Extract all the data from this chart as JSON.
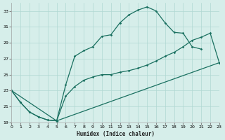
{
  "bg_color": "#d6eeea",
  "grid_color": "#b0d8d2",
  "line_color": "#1a7060",
  "xlabel": "Humidex (Indice chaleur)",
  "xlim": [
    0,
    23
  ],
  "ylim": [
    19,
    34
  ],
  "yticks": [
    19,
    21,
    23,
    25,
    27,
    29,
    31,
    33
  ],
  "xticks": [
    0,
    1,
    2,
    3,
    4,
    5,
    6,
    7,
    8,
    9,
    10,
    11,
    12,
    13,
    14,
    15,
    16,
    17,
    18,
    19,
    20,
    21,
    22,
    23
  ],
  "line1_x": [
    0,
    1,
    2,
    3,
    4,
    5,
    6,
    7,
    8,
    9,
    10,
    11,
    12,
    13,
    14,
    15,
    16,
    17,
    18,
    19,
    20,
    21
  ],
  "line1_y": [
    23.0,
    21.5,
    20.3,
    19.7,
    19.3,
    19.2,
    23.7,
    27.3,
    28.0,
    28.5,
    29.8,
    30.0,
    31.5,
    32.5,
    33.1,
    33.5,
    33.0,
    31.5,
    30.3,
    30.2,
    28.5,
    28.2
  ],
  "line2_x": [
    0,
    1,
    2,
    3,
    4,
    5,
    6,
    7,
    8,
    9,
    10,
    11,
    12,
    13,
    14,
    15,
    16,
    17,
    18,
    19,
    20,
    21,
    22,
    23
  ],
  "line2_y": [
    23.0,
    21.5,
    20.3,
    19.7,
    19.3,
    19.2,
    22.3,
    23.5,
    24.3,
    24.7,
    25.0,
    25.0,
    25.3,
    25.5,
    25.8,
    26.2,
    26.7,
    27.3,
    27.8,
    28.5,
    29.3,
    29.7,
    30.2,
    26.5
  ],
  "line3_x": [
    0,
    5,
    23
  ],
  "line3_y": [
    23.0,
    19.2,
    26.5
  ]
}
